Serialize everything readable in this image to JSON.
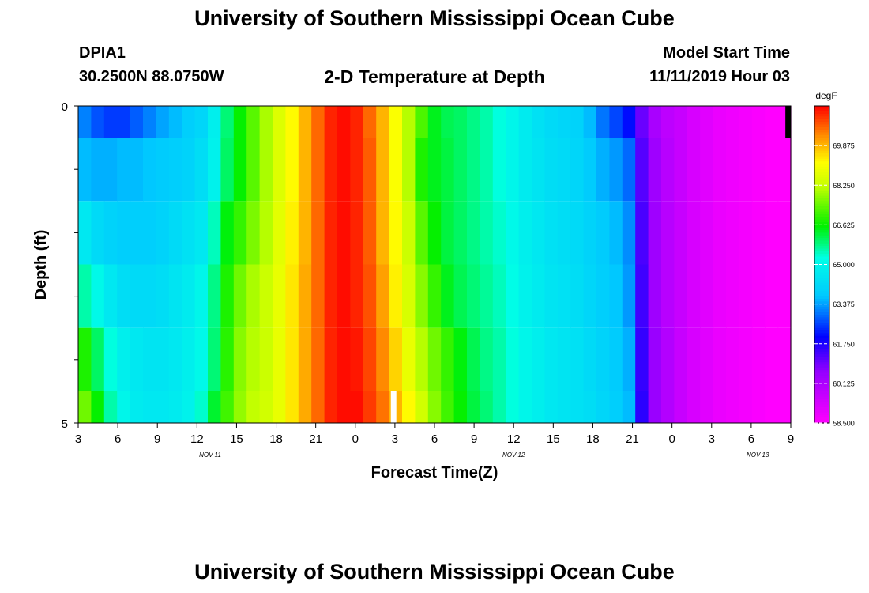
{
  "header": {
    "title": "University of Southern Mississippi Ocean Cube",
    "station_id": "DPIA1",
    "coords": "30.2500N 88.0750W",
    "plot_title": "2-D Temperature at Depth",
    "start_label": "Model Start Time",
    "start_value": "11/11/2019 Hour 03"
  },
  "footer": {
    "title": "University of Southern Mississippi Ocean Cube"
  },
  "chart_data": {
    "type": "heatmap",
    "title": "2-D Temperature at Depth",
    "xlabel": "Forecast Time(Z)",
    "ylabel": "Depth (ft)",
    "ylim": [
      0,
      5
    ],
    "y_ticks": [
      "0",
      "5"
    ],
    "x_tick_labels": [
      "3",
      "6",
      "9",
      "12",
      "15",
      "18",
      "21",
      "0",
      "3",
      "6",
      "9",
      "12",
      "15",
      "18",
      "21",
      "0",
      "3",
      "6",
      "9"
    ],
    "x_hour_range": [
      3,
      57
    ],
    "date_labels": [
      {
        "text": "NOV 11",
        "hour": 13
      },
      {
        "text": "NOV 12",
        "hour": 36
      },
      {
        "text": "NOV 13",
        "hour": 54.5
      }
    ],
    "colorbar": {
      "unit": "degF",
      "min": 58.5,
      "max": 71.5,
      "tick_labels": [
        "69.875",
        "68.250",
        "66.625",
        "65.000",
        "63.375",
        "61.750",
        "60.125",
        "58.500"
      ],
      "tick_values": [
        69.875,
        68.25,
        66.625,
        65.0,
        63.375,
        61.75,
        60.125,
        58.5
      ]
    },
    "depth_layers": [
      {
        "depth_range": [
          0,
          0.5
        ],
        "values": [
          63.1,
          62.7,
          62.5,
          62.5,
          62.8,
          63.1,
          63.4,
          63.6,
          63.9,
          64.1,
          64.8,
          65.9,
          66.6,
          67.3,
          68.0,
          68.6,
          69.2,
          69.9,
          70.6,
          71.2,
          71.4,
          71.2,
          70.6,
          69.9,
          69.1,
          68.1,
          67.2,
          66.4,
          66.1,
          66.0,
          65.8,
          65.6,
          65.3,
          65.0,
          64.7,
          64.4,
          64.2,
          64.1,
          64.0,
          63.6,
          63.0,
          62.6,
          62.1,
          61.0,
          60.2,
          59.8,
          59.6,
          59.3,
          59.1,
          58.9,
          58.8,
          58.7,
          58.6,
          58.5,
          58.5
        ]
      },
      {
        "depth_range": [
          0.5,
          1.5
        ],
        "values": [
          63.6,
          63.5,
          63.5,
          63.6,
          63.6,
          63.7,
          63.8,
          63.9,
          64.0,
          64.3,
          64.9,
          66.0,
          66.6,
          67.3,
          68.0,
          68.6,
          69.2,
          69.9,
          70.6,
          71.2,
          71.4,
          71.2,
          70.7,
          69.9,
          69.1,
          68.1,
          66.8,
          66.4,
          66.2,
          66.0,
          65.8,
          65.6,
          65.3,
          65.0,
          64.7,
          64.5,
          64.3,
          64.2,
          64.1,
          63.8,
          63.5,
          63.3,
          62.9,
          61.2,
          60.4,
          59.9,
          59.6,
          59.3,
          59.1,
          58.9,
          58.8,
          58.7,
          58.6,
          58.5,
          58.5
        ]
      },
      {
        "depth_range": [
          1.5,
          2.5
        ],
        "values": [
          64.6,
          64.2,
          64.0,
          63.9,
          63.9,
          63.9,
          64.0,
          64.2,
          64.4,
          64.6,
          65.5,
          66.5,
          67.0,
          67.6,
          68.1,
          68.7,
          69.3,
          69.9,
          70.6,
          71.2,
          71.4,
          71.2,
          70.7,
          69.9,
          69.2,
          68.3,
          67.3,
          66.6,
          66.2,
          66.0,
          65.8,
          65.6,
          65.4,
          65.1,
          64.8,
          64.6,
          64.4,
          64.3,
          64.2,
          64.0,
          63.8,
          63.6,
          63.2,
          61.3,
          60.4,
          59.9,
          59.6,
          59.3,
          59.1,
          58.9,
          58.8,
          58.7,
          58.6,
          58.5,
          58.5
        ]
      },
      {
        "depth_range": [
          2.5,
          3.5
        ],
        "values": [
          65.6,
          65.1,
          64.6,
          64.3,
          64.2,
          64.2,
          64.3,
          64.5,
          64.7,
          65.0,
          65.8,
          66.8,
          67.5,
          68.0,
          68.3,
          68.8,
          69.4,
          70.0,
          70.6,
          71.2,
          71.4,
          71.2,
          70.8,
          70.1,
          69.3,
          68.5,
          67.7,
          67.0,
          66.4,
          66.1,
          65.9,
          65.7,
          65.5,
          65.2,
          64.9,
          64.7,
          64.5,
          64.4,
          64.3,
          64.1,
          63.9,
          63.7,
          63.3,
          61.4,
          60.4,
          59.9,
          59.6,
          59.3,
          59.1,
          58.9,
          58.8,
          58.7,
          58.6,
          58.5,
          58.5
        ]
      },
      {
        "depth_range": [
          3.5,
          4.5
        ],
        "values": [
          66.8,
          66.0,
          65.3,
          64.8,
          64.6,
          64.5,
          64.5,
          64.6,
          64.8,
          65.1,
          65.9,
          66.9,
          67.7,
          68.1,
          68.3,
          68.8,
          69.4,
          70.0,
          70.6,
          71.2,
          71.4,
          71.3,
          70.9,
          70.3,
          69.6,
          68.8,
          68.1,
          67.5,
          67.0,
          66.5,
          66.1,
          65.8,
          65.6,
          65.3,
          65.0,
          64.8,
          64.6,
          64.5,
          64.4,
          64.2,
          64.0,
          63.8,
          63.5,
          61.5,
          60.5,
          60.0,
          59.6,
          59.3,
          59.1,
          58.9,
          58.8,
          58.7,
          58.6,
          58.5,
          58.5
        ]
      },
      {
        "depth_range": [
          4.5,
          5
        ],
        "values": [
          67.5,
          66.6,
          65.6,
          65.0,
          64.7,
          64.6,
          64.6,
          64.7,
          64.9,
          65.4,
          66.3,
          67.1,
          67.8,
          68.2,
          68.4,
          68.8,
          69.4,
          70.0,
          70.6,
          71.2,
          71.4,
          71.4,
          71.0,
          70.5,
          69.9,
          69.2,
          68.4,
          67.7,
          67.1,
          66.6,
          66.2,
          65.9,
          65.6,
          65.3,
          65.0,
          64.8,
          64.6,
          64.5,
          64.4,
          64.3,
          64.1,
          63.9,
          63.6,
          61.6,
          60.5,
          60.0,
          59.6,
          59.3,
          59.1,
          58.9,
          58.8,
          58.7,
          58.6,
          58.5,
          58.5
        ]
      }
    ],
    "markers": [
      {
        "label": "",
        "color": "#ffffff",
        "hour": 26.9,
        "depth_range": [
          4.5,
          5
        ]
      },
      {
        "label": "",
        "color": "#000000",
        "hour": 56.8,
        "depth_range": [
          0,
          0.5
        ]
      }
    ]
  }
}
